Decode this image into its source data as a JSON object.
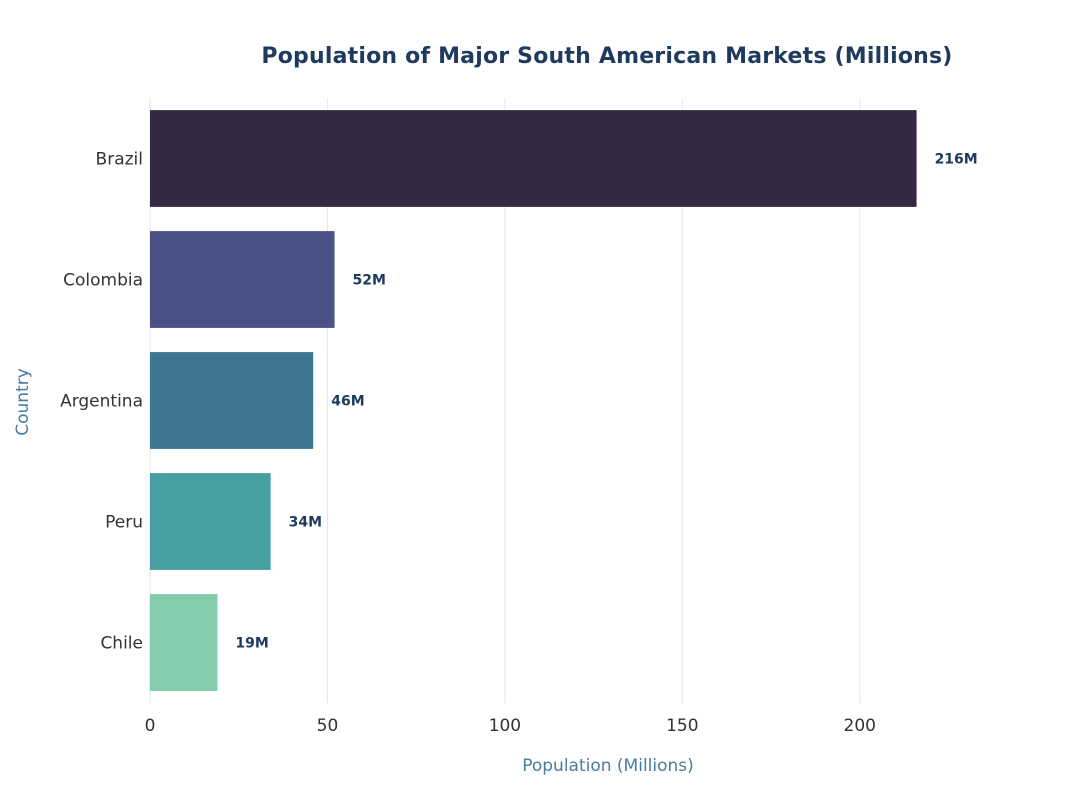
{
  "chart_data": {
    "type": "bar",
    "orientation": "horizontal",
    "title": "Population of Major South American Markets (Millions)",
    "xlabel": "Population (Millions)",
    "ylabel": "Country",
    "categories": [
      "Brazil",
      "Colombia",
      "Argentina",
      "Peru",
      "Chile"
    ],
    "values": [
      216,
      52,
      46,
      34,
      19
    ],
    "data_labels": [
      "216M",
      "52M",
      "46M",
      "34M",
      "19M"
    ],
    "colors": [
      "#352841",
      "#4a5184",
      "#3e7693",
      "#469fa1",
      "#84ccac"
    ],
    "xlim": [
      0,
      235
    ],
    "xticks": [
      0,
      50,
      100,
      150,
      200
    ],
    "grid": "vertical",
    "legend": "none"
  }
}
